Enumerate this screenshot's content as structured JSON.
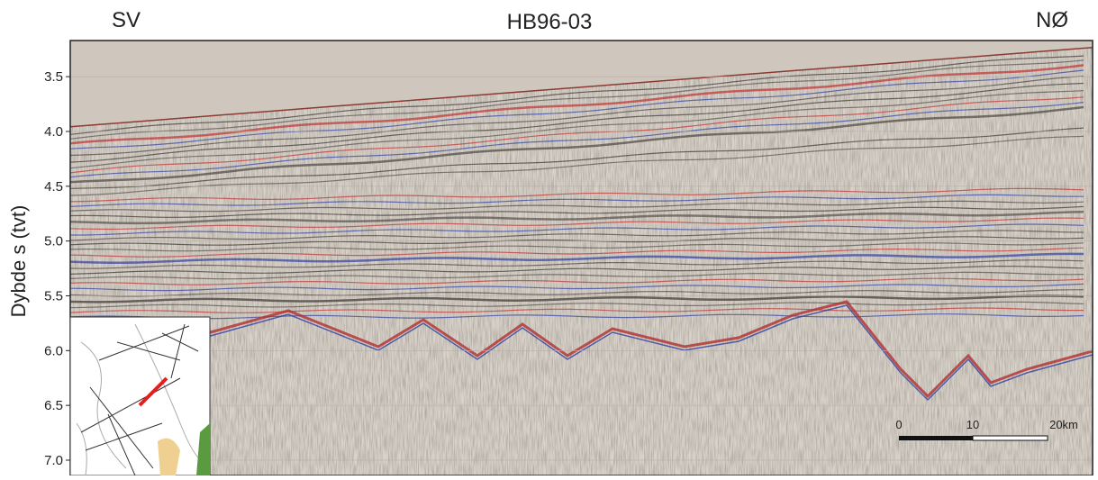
{
  "labels": {
    "left": "SV",
    "title": "HB96-03",
    "right": "NØ"
  },
  "axis": {
    "label": "Dybde s (tvt)",
    "ylim": [
      3.17,
      7.14
    ],
    "ticks": [
      3.5,
      {
        "value": 4,
        "label": "4.0"
      },
      4.5,
      {
        "value": 5,
        "label": "5.0"
      },
      5.5,
      {
        "value": 6,
        "label": "6.0"
      },
      6.5,
      {
        "value": 7,
        "label": "7.0"
      }
    ]
  },
  "scale_bar": {
    "ticks": [
      "0",
      "10",
      "20km"
    ]
  }
}
